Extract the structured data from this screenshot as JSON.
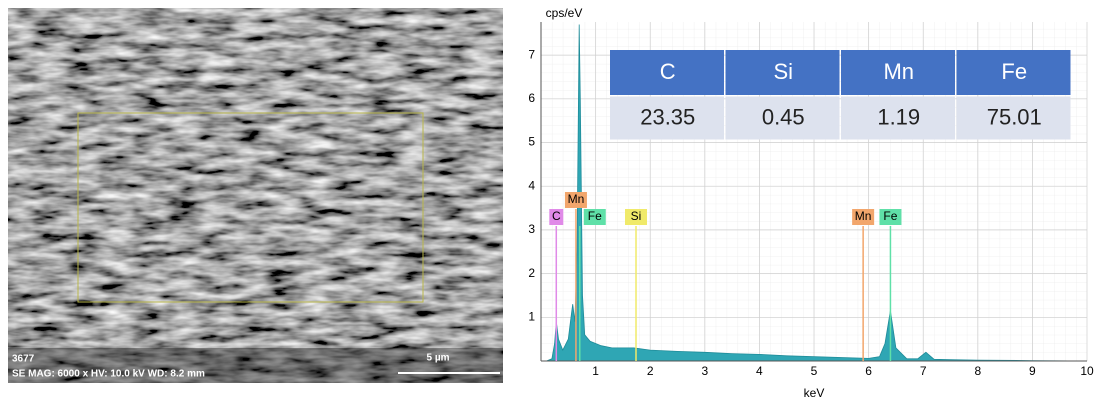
{
  "image": {
    "id": "3677",
    "info": "SE  MAG: 6000 x  HV: 10.0 kV  WD: 8.2 mm",
    "scale": "5 µm"
  },
  "chart_data": {
    "type": "area",
    "ylabel": "cps/eV",
    "xlabel": "keV",
    "color": "#2fa6b4",
    "x": [
      0.1,
      0.2,
      0.25,
      0.28,
      0.32,
      0.4,
      0.5,
      0.55,
      0.58,
      0.62,
      0.66,
      0.7,
      0.72,
      0.76,
      0.8,
      0.9,
      1.0,
      1.1,
      1.3,
      1.5,
      1.7,
      2.0,
      2.5,
      3.0,
      3.5,
      4.0,
      4.5,
      5.0,
      5.5,
      6.0,
      6.2,
      6.3,
      6.4,
      6.5,
      6.7,
      6.9,
      7.05,
      7.2,
      7.5,
      8.0,
      9.0,
      10.0
    ],
    "values": [
      0,
      0.05,
      0.4,
      0.9,
      0.5,
      0.25,
      0.5,
      1.0,
      1.3,
      0.9,
      2.5,
      7.7,
      6.0,
      1.5,
      0.6,
      0.45,
      0.4,
      0.35,
      0.3,
      0.3,
      0.3,
      0.25,
      0.22,
      0.2,
      0.17,
      0.15,
      0.12,
      0.1,
      0.08,
      0.06,
      0.1,
      0.4,
      1.15,
      0.3,
      0.05,
      0.05,
      0.2,
      0.04,
      0.03,
      0.02,
      0.01,
      0
    ],
    "xlim": [
      0,
      10
    ],
    "ylim": [
      0,
      7.7
    ],
    "xticks": [
      1,
      2,
      3,
      4,
      5,
      6,
      7,
      8,
      9,
      10
    ],
    "yticks": [
      1,
      2,
      3,
      4,
      5,
      6,
      7
    ],
    "grid": true,
    "markers": [
      {
        "label": "C",
        "x": 0.28,
        "color": "#e08ae8"
      },
      {
        "label": "Mn",
        "x": 0.64,
        "color": "#f2a66c"
      },
      {
        "label": "Fe",
        "x": 0.71,
        "color": "#5fe0a8"
      },
      {
        "label": "Si",
        "x": 1.74,
        "color": "#f0ea6a"
      },
      {
        "label": "Mn",
        "x": 5.9,
        "color": "#f2a66c"
      },
      {
        "label": "Fe",
        "x": 6.4,
        "color": "#5fe0a8"
      }
    ]
  },
  "table": {
    "header": [
      "C",
      "Si",
      "Mn",
      "Fe"
    ],
    "rows": [
      [
        "23.35",
        "0.45",
        "1.19",
        "75.01"
      ]
    ]
  }
}
